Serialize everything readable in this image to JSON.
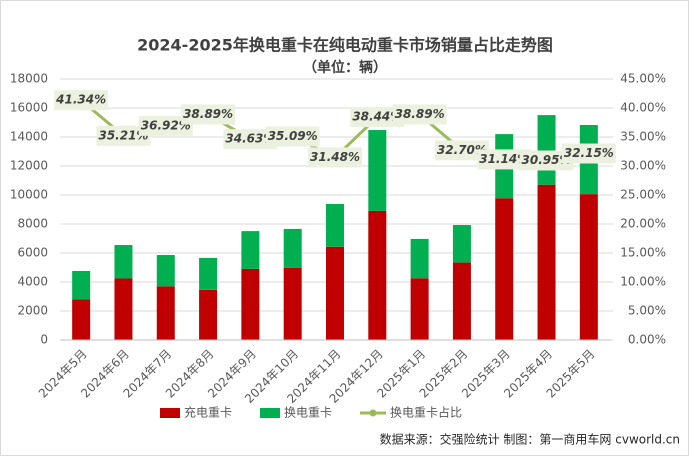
{
  "chart_data": {
    "type": "bar_line",
    "title": "2024-2025年换电重卡在纯电动重卡市场销量占比走势图",
    "subtitle": "（单位：辆）",
    "categories": [
      "2024年5月",
      "2024年6月",
      "2024年7月",
      "2024年8月",
      "2024年9月",
      "2024年10月",
      "2024年11月",
      "2024年12月",
      "2025年1月",
      "2025年2月",
      "2025年3月",
      "2025年4月",
      "2025年5月"
    ],
    "series": [
      {
        "name": "充电重卡",
        "color": "#c00000",
        "values": [
          2790,
          4240,
          3700,
          3460,
          4910,
          4970,
          6430,
          8910,
          4260,
          5340,
          9780,
          10710,
          10060
        ]
      },
      {
        "name": "换电重卡",
        "color": "#00b050",
        "values": [
          1970,
          2310,
          2160,
          2200,
          2600,
          2690,
          2950,
          5570,
          2710,
          2590,
          4420,
          4800,
          4770
        ]
      },
      {
        "name": "换电重卡占比",
        "color": "#9bbb59",
        "axis": "y2",
        "values": [
          41.34,
          35.21,
          36.92,
          38.89,
          34.63,
          35.09,
          31.48,
          38.44,
          38.89,
          32.7,
          31.14,
          30.95,
          32.15
        ],
        "value_labels": [
          "41.34%",
          "35.21%",
          "36.92%",
          "38.89%",
          "34.63%",
          "35.09%",
          "31.48%",
          "38.44%",
          "38.89%",
          "32.70%",
          "31.14%",
          "30.95%",
          "32.15%"
        ]
      }
    ],
    "ylim": [
      0,
      18000
    ],
    "yticks": [
      0,
      2000,
      4000,
      6000,
      8000,
      10000,
      12000,
      14000,
      16000,
      18000
    ],
    "y2lim": [
      0,
      45
    ],
    "y2ticks": [
      {
        "value": 0,
        "label": "0.00%"
      },
      {
        "value": 5,
        "label": "5.00%"
      },
      {
        "value": 10,
        "label": "10.00%"
      },
      {
        "value": 15,
        "label": "15.00%"
      },
      {
        "value": 20,
        "label": "20.00%"
      },
      {
        "value": 25,
        "label": "25.00%"
      },
      {
        "value": 30,
        "label": "30.00%"
      },
      {
        "value": 35,
        "label": "35.00%"
      },
      {
        "value": 40,
        "label": "40.00%"
      },
      {
        "value": 45,
        "label": "45.00%"
      }
    ],
    "source": "数据来源：交强险统计 制图：第一商用车网 cvworld.cn"
  }
}
